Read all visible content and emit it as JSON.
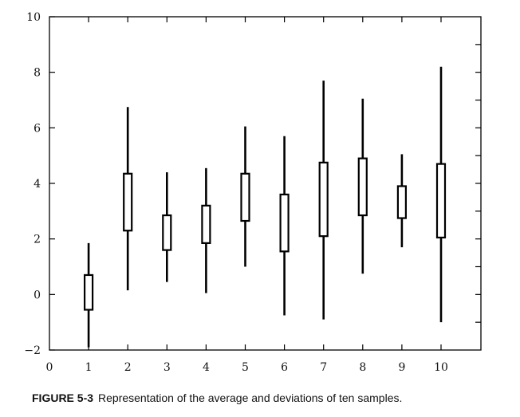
{
  "chart_data": {
    "type": "box",
    "title": "",
    "xlabel": "",
    "ylabel": "",
    "xlim": [
      0,
      11
    ],
    "ylim": [
      -2,
      10
    ],
    "x_ticks": [
      0,
      1,
      2,
      3,
      4,
      5,
      6,
      7,
      8,
      9,
      10
    ],
    "y_ticks": [
      -2,
      0,
      2,
      4,
      6,
      8,
      10
    ],
    "y_tick_labels": [
      "−2",
      "0",
      "2",
      "4",
      "6",
      "8",
      "10"
    ],
    "grid": false,
    "legend": "none",
    "samples": [
      {
        "x": 1,
        "min": -1.9,
        "q1": -0.55,
        "q3": 0.7,
        "max": 1.85
      },
      {
        "x": 2,
        "min": 0.15,
        "q1": 2.3,
        "q3": 4.35,
        "max": 6.75
      },
      {
        "x": 3,
        "min": 0.45,
        "q1": 1.6,
        "q3": 2.85,
        "max": 4.4
      },
      {
        "x": 4,
        "min": 0.05,
        "q1": 1.85,
        "q3": 3.2,
        "max": 4.55
      },
      {
        "x": 5,
        "min": 1.0,
        "q1": 2.65,
        "q3": 4.35,
        "max": 6.05
      },
      {
        "x": 6,
        "min": -0.75,
        "q1": 1.55,
        "q3": 3.6,
        "max": 5.7
      },
      {
        "x": 7,
        "min": -0.9,
        "q1": 2.1,
        "q3": 4.75,
        "max": 7.7
      },
      {
        "x": 8,
        "min": 0.75,
        "q1": 2.85,
        "q3": 4.9,
        "max": 7.05
      },
      {
        "x": 9,
        "min": 1.7,
        "q1": 2.75,
        "q3": 3.9,
        "max": 5.05
      },
      {
        "x": 10,
        "min": -1.0,
        "q1": 2.05,
        "q3": 4.7,
        "max": 8.2
      }
    ]
  },
  "caption": {
    "label": "FIGURE 5-3",
    "text": "Representation of the average and deviations of ten samples."
  }
}
